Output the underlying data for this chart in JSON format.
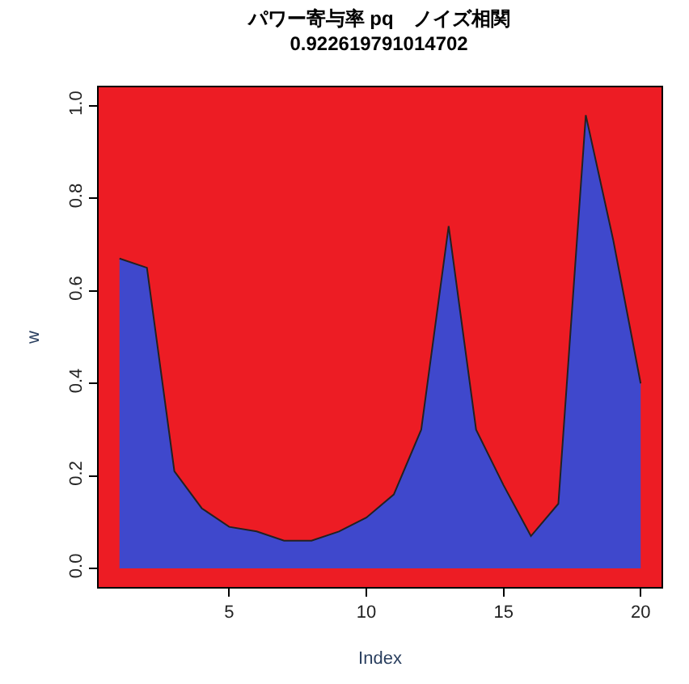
{
  "chart_data": {
    "type": "area",
    "title": "パワー寄与率 pq　ノイズ相関",
    "subtitle": "0.922619791014702",
    "xlabel": "Index",
    "ylabel": "w",
    "x": [
      1,
      2,
      3,
      4,
      5,
      6,
      7,
      8,
      9,
      10,
      11,
      12,
      13,
      14,
      15,
      16,
      17,
      18,
      19,
      20
    ],
    "series": [
      {
        "color": "#3f48cc",
        "values": [
          0.67,
          0.65,
          0.21,
          0.13,
          0.09,
          0.08,
          0.06,
          0.06,
          0.08,
          0.11,
          0.16,
          0.3,
          0.74,
          0.3,
          0.18,
          0.07,
          0.14,
          0.98,
          0.71,
          0.4
        ]
      }
    ],
    "bands": [
      {
        "axis": "y",
        "from": -0.04,
        "to": 1.04,
        "color": "#ed1c24"
      }
    ],
    "xlim": [
      0.24,
      20.76
    ],
    "ylim": [
      -0.04,
      1.04
    ],
    "xticks": [
      5,
      10,
      15,
      20
    ],
    "yticks": [
      {
        "value": 0,
        "label": "0.0"
      },
      0.2,
      0.4,
      0.6,
      0.8,
      {
        "value": 1,
        "label": "1.0"
      }
    ]
  }
}
